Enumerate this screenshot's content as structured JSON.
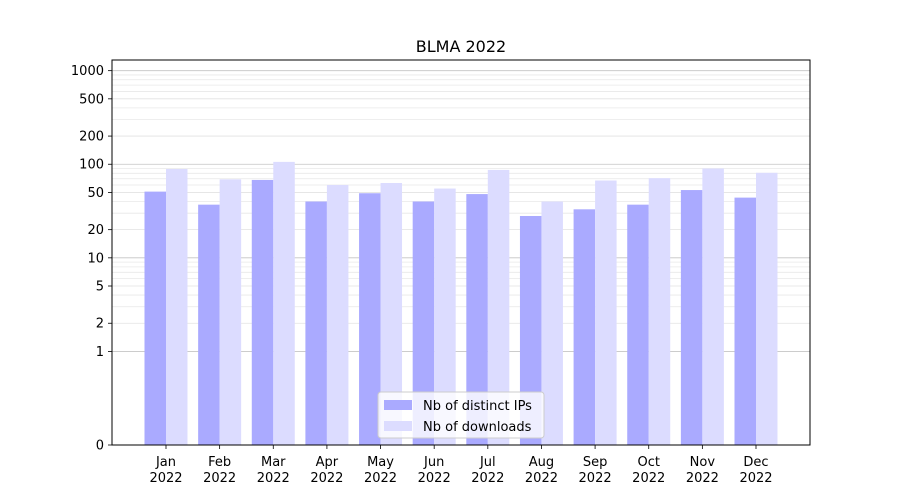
{
  "chart_data": {
    "type": "bar",
    "title": "BLMA 2022",
    "xlabel": "",
    "ylabel": "",
    "yscale": "symlog",
    "ylim": [
      0,
      1300
    ],
    "yticks": [
      0,
      1,
      2,
      5,
      10,
      20,
      50,
      100,
      200,
      500,
      1000
    ],
    "grid": true,
    "legend_position": "bottom-center",
    "categories": [
      {
        "month": "Jan",
        "year": "2022"
      },
      {
        "month": "Feb",
        "year": "2022"
      },
      {
        "month": "Mar",
        "year": "2022"
      },
      {
        "month": "Apr",
        "year": "2022"
      },
      {
        "month": "May",
        "year": "2022"
      },
      {
        "month": "Jun",
        "year": "2022"
      },
      {
        "month": "Jul",
        "year": "2022"
      },
      {
        "month": "Aug",
        "year": "2022"
      },
      {
        "month": "Sep",
        "year": "2022"
      },
      {
        "month": "Oct",
        "year": "2022"
      },
      {
        "month": "Nov",
        "year": "2022"
      },
      {
        "month": "Dec",
        "year": "2022"
      }
    ],
    "series": [
      {
        "name": "Nb of distinct IPs",
        "color": "#aaaaff",
        "values": [
          51,
          37,
          68,
          40,
          49,
          40,
          48,
          28,
          33,
          37,
          53,
          44
        ]
      },
      {
        "name": "Nb of downloads",
        "color": "#dcdcff",
        "values": [
          89,
          69,
          106,
          60,
          63,
          55,
          87,
          40,
          67,
          71,
          90,
          81
        ]
      }
    ]
  }
}
